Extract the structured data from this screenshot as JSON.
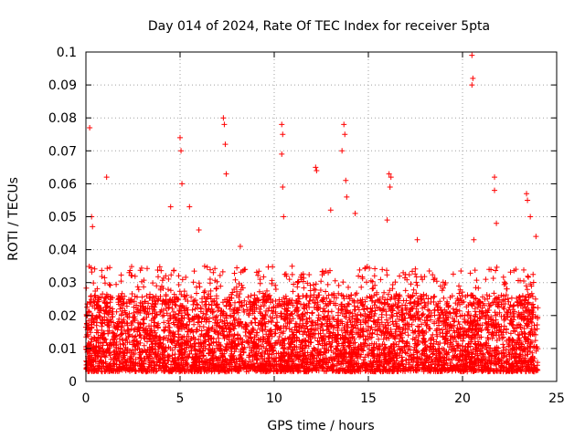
{
  "chart_data": {
    "type": "scatter",
    "title": "Day 014 of 2024, Rate Of TEC Index for receiver 5pta",
    "xlabel": "GPS time / hours",
    "ylabel": "ROTI / TECUs",
    "xlim": [
      0,
      25
    ],
    "ylim": [
      0,
      0.1
    ],
    "x_ticks": [
      "0",
      "5",
      "10",
      "15",
      "20",
      "25"
    ],
    "y_ticks": [
      "0",
      "0.01",
      "0.02",
      "0.03",
      "0.04",
      "0.05",
      "0.06",
      "0.07",
      "0.08",
      "0.09",
      "0.1"
    ],
    "grid": true,
    "marker": "+",
    "color": "#ff0000",
    "series": [
      {
        "name": "ROTI",
        "notable_points": [
          [
            0.2,
            0.077
          ],
          [
            0.3,
            0.05
          ],
          [
            0.35,
            0.047
          ],
          [
            1.1,
            0.062
          ],
          [
            4.5,
            0.053
          ],
          [
            5.0,
            0.074
          ],
          [
            5.05,
            0.07
          ],
          [
            5.1,
            0.06
          ],
          [
            5.5,
            0.053
          ],
          [
            6.0,
            0.046
          ],
          [
            7.3,
            0.08
          ],
          [
            7.35,
            0.078
          ],
          [
            7.4,
            0.072
          ],
          [
            7.45,
            0.063
          ],
          [
            8.2,
            0.041
          ],
          [
            10.4,
            0.078
          ],
          [
            10.45,
            0.075
          ],
          [
            10.4,
            0.069
          ],
          [
            10.45,
            0.059
          ],
          [
            10.5,
            0.05
          ],
          [
            12.2,
            0.065
          ],
          [
            12.25,
            0.064
          ],
          [
            13.0,
            0.052
          ],
          [
            13.6,
            0.07
          ],
          [
            13.7,
            0.078
          ],
          [
            13.75,
            0.075
          ],
          [
            13.8,
            0.061
          ],
          [
            13.85,
            0.056
          ],
          [
            14.3,
            0.051
          ],
          [
            16.0,
            0.049
          ],
          [
            16.1,
            0.063
          ],
          [
            16.15,
            0.059
          ],
          [
            16.2,
            0.062
          ],
          [
            17.6,
            0.043
          ],
          [
            20.5,
            0.099
          ],
          [
            20.55,
            0.092
          ],
          [
            20.5,
            0.09
          ],
          [
            20.6,
            0.043
          ],
          [
            21.7,
            0.062
          ],
          [
            21.7,
            0.058
          ],
          [
            21.8,
            0.048
          ],
          [
            23.4,
            0.057
          ],
          [
            23.45,
            0.055
          ],
          [
            23.6,
            0.05
          ],
          [
            23.9,
            0.044
          ]
        ],
        "baseline": {
          "description": "dense band of measurements every ~30 s",
          "y_range": [
            0.003,
            0.035
          ],
          "typical": 0.012
        }
      }
    ]
  }
}
